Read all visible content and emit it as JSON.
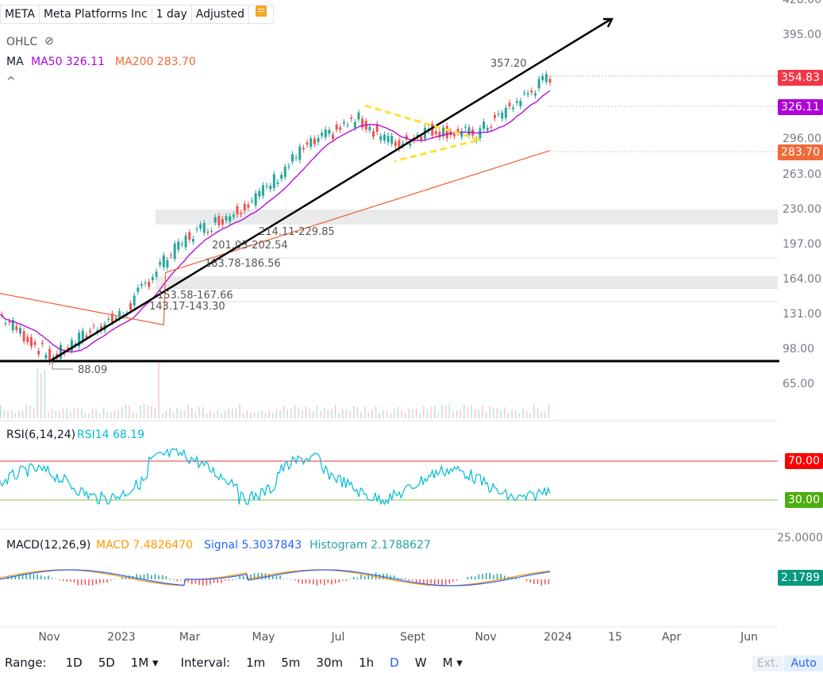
{
  "header": {
    "symbol": "META",
    "name": "Meta Platforms Inc",
    "interval": "1 day",
    "adjust": "Adjusted",
    "ohlc_label": "OHLC",
    "ma_label": "MA",
    "ma50": "MA50 326.11",
    "ma200": "MA200 283.70",
    "caret": "^"
  },
  "price_axis": [
    "428.00",
    "395.00",
    "296.00",
    "263.00",
    "230.00",
    "197.00",
    "164.00",
    "131.00",
    "98.00",
    "65.00"
  ],
  "tags": {
    "last": "354.83",
    "ma50": "326.11",
    "ma200": "283.70",
    "rsi70": "70.00",
    "rsi30": "30.00",
    "macd_hist": "2.1789",
    "macd_top": "25.0000"
  },
  "annotations": {
    "high": "357.20",
    "low": "88.09",
    "z1": "214.11-229.85",
    "z2": "201.03-202.54",
    "z3": "183.78-186.56",
    "z4": "153.58-167.66",
    "z5": "143.17-143.30"
  },
  "rsi": {
    "title": "RSI(6,14,24)",
    "value": "RSI14 68.19"
  },
  "macd": {
    "title": "MACD(12,26,9)",
    "macd": "MACD 7.4826470",
    "signal": "Signal 5.3037843",
    "hist": "Histogram 2.1788627"
  },
  "x_labels": [
    "Nov",
    "2023",
    "Mar",
    "May",
    "Jul",
    "Sept",
    "Nov",
    "2024",
    "15",
    "Apr",
    "Jun"
  ],
  "bottom": {
    "range": "Range:",
    "r1": "1D",
    "r2": "5D",
    "r3": "1M ▾",
    "interval": "Interval:",
    "i1": "1m",
    "i2": "5m",
    "i3": "30m",
    "i4": "1h",
    "i5": "D",
    "i6": "W",
    "i7": "M ▾",
    "ext": "Ext.",
    "auto": "Auto"
  },
  "colors": {
    "up": "#26a69a",
    "down": "#ef5350",
    "ma50": "#b000d8",
    "ma200": "#f06a3a",
    "rsi": "#00bcd4",
    "macd": "#ff9800",
    "signal": "#2962ff"
  },
  "chart_data": {
    "type": "line",
    "title": "META Meta Platforms Inc 1 day",
    "ylim": [
      65,
      428
    ],
    "last": 354.83,
    "close_path": [
      {
        "x": "Oct 2022",
        "y": 130
      },
      {
        "x": "Nov 3 2022",
        "y": 88.09
      },
      {
        "x": "Dec 2022",
        "y": 118
      },
      {
        "x": "Jan 2023",
        "y": 130
      },
      {
        "x": "Feb 2023",
        "y": 175
      },
      {
        "x": "Mar 2023",
        "y": 205
      },
      {
        "x": "Apr 2023",
        "y": 225
      },
      {
        "x": "May 2023",
        "y": 245
      },
      {
        "x": "Jun 2023",
        "y": 285
      },
      {
        "x": "Jul 2023",
        "y": 315
      },
      {
        "x": "Aug 2023",
        "y": 290
      },
      {
        "x": "Sept 2023",
        "y": 305
      },
      {
        "x": "Oct 2023",
        "y": 300
      },
      {
        "x": "Nov 2023",
        "y": 330
      },
      {
        "x": "Dec 2023",
        "y": 354.83
      }
    ],
    "ma50_last": 326.11,
    "ma200_last": 283.7,
    "high_label": 357.2,
    "low_label": 88.09,
    "rsi14_last": 68.19,
    "rsi_levels": [
      70,
      30
    ],
    "macd_last": 7.482647,
    "signal_last": 5.3037843,
    "hist_last": 2.1788627
  }
}
